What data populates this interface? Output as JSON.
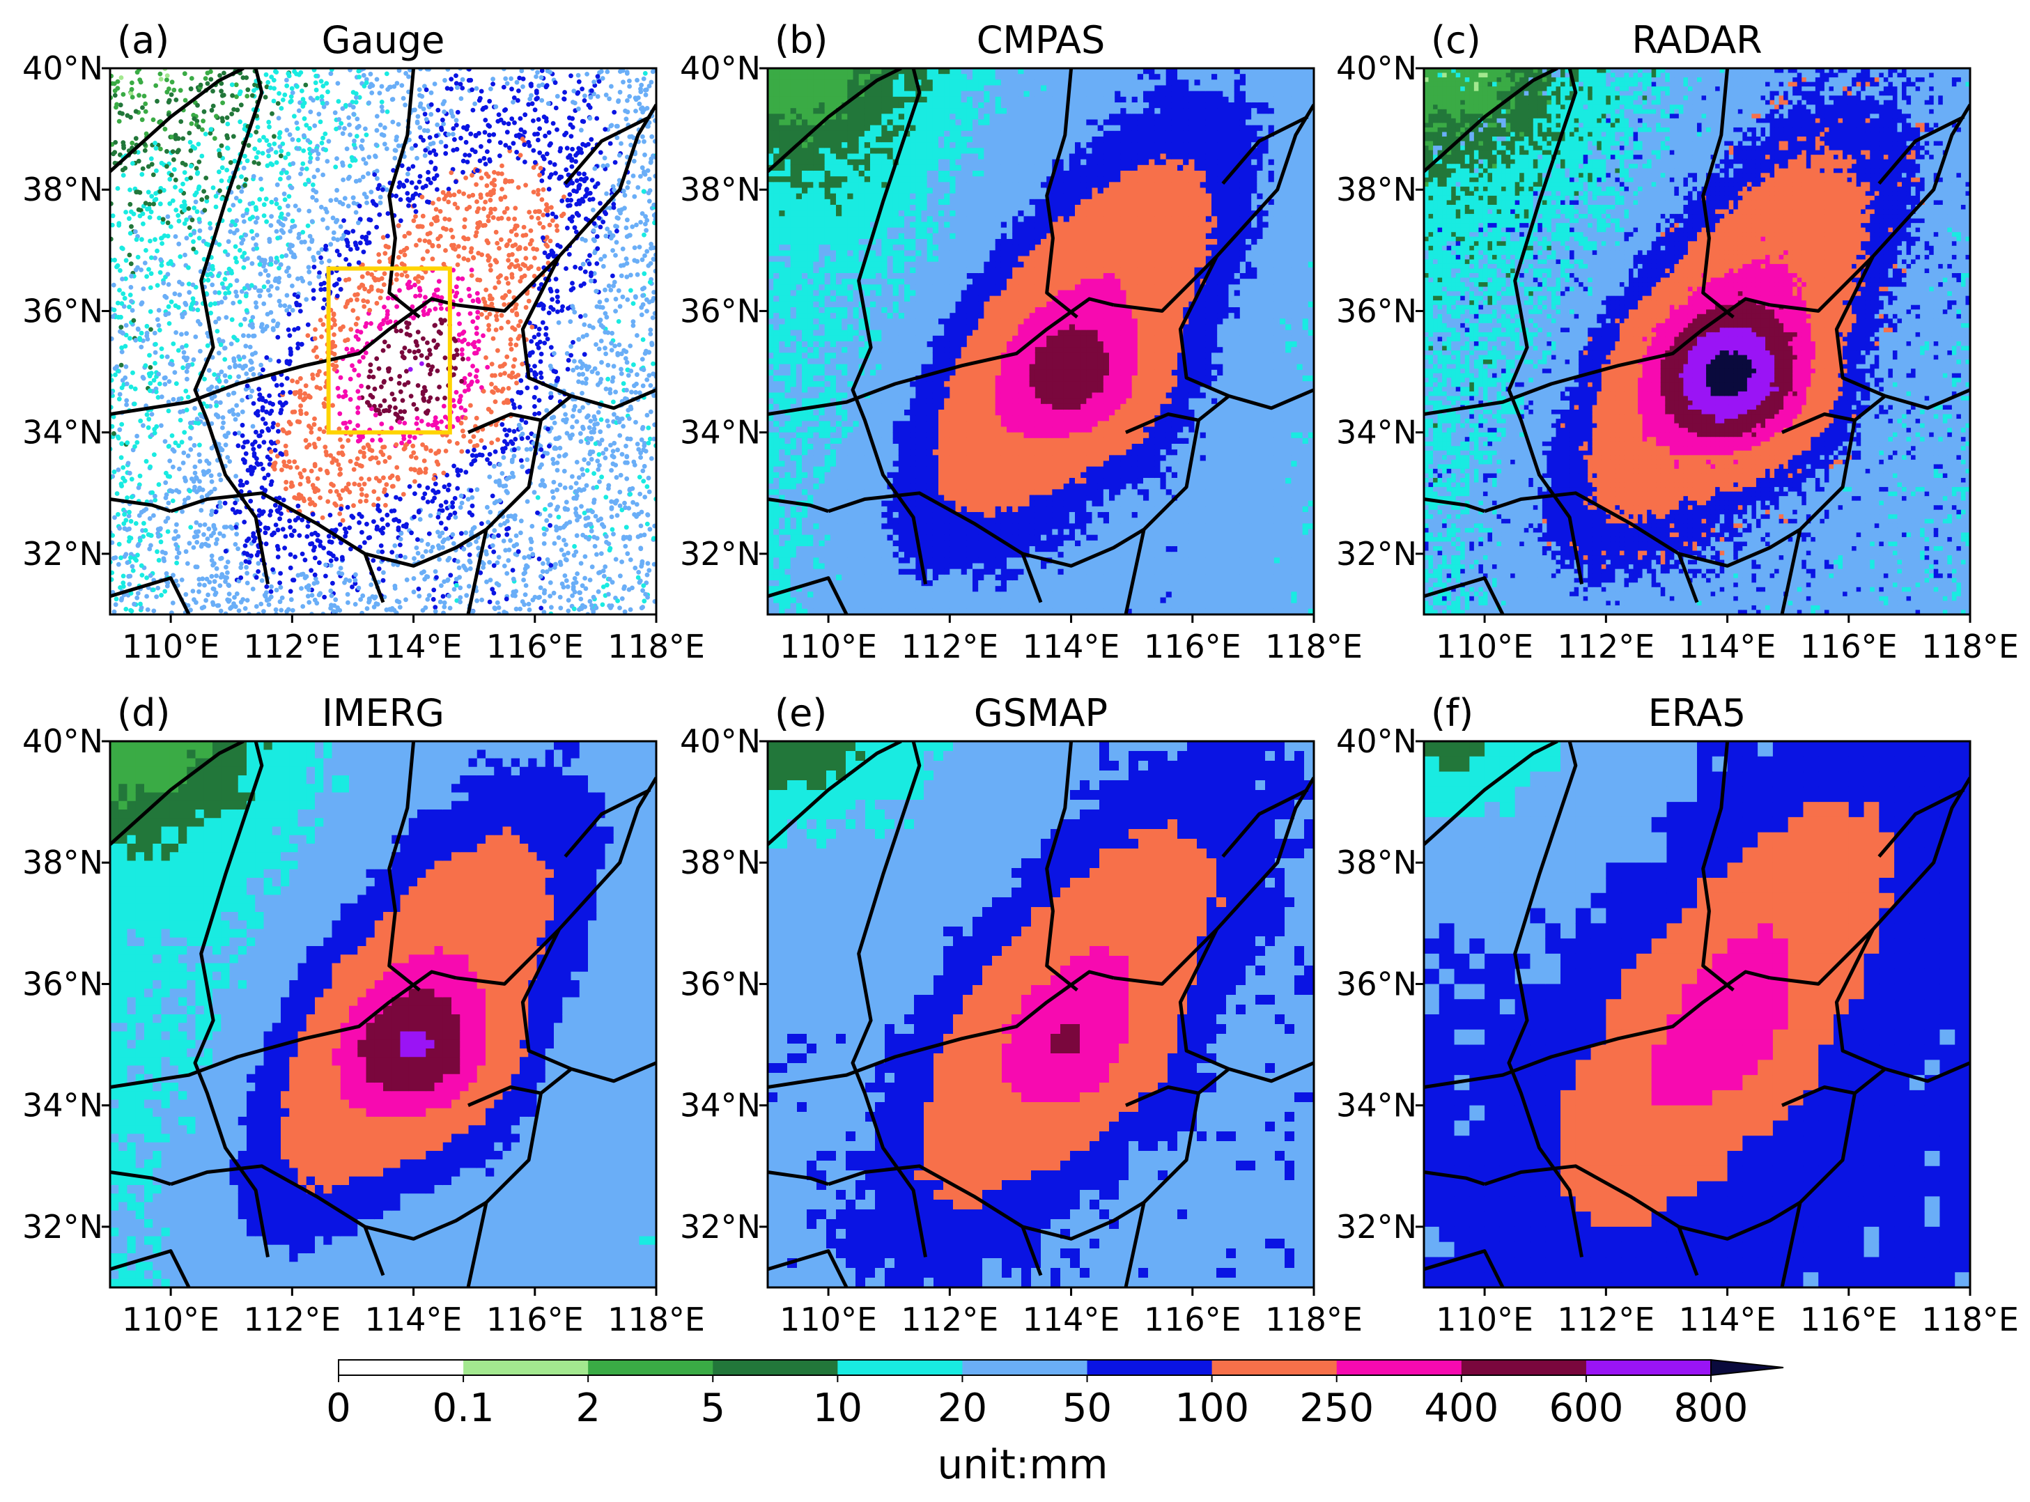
{
  "chart_data": {
    "type": "heatmap",
    "figure_title": "",
    "unit_label": "unit:mm",
    "x_ticks": [
      "110°E",
      "112°E",
      "114°E",
      "116°E",
      "118°E"
    ],
    "y_ticks": [
      "40°N",
      "38°N",
      "36°N",
      "34°N",
      "32°N"
    ],
    "x_tick_values": [
      110,
      112,
      114,
      116,
      118
    ],
    "y_tick_values": [
      40,
      38,
      36,
      34,
      32
    ],
    "xlim": [
      109,
      118
    ],
    "ylim": [
      31,
      40
    ],
    "colorbar": {
      "bounds": [
        "0",
        "0.1",
        "2",
        "5",
        "10",
        "20",
        "50",
        "100",
        "250",
        "400",
        "600",
        "800"
      ],
      "colors": [
        "#ffffff",
        "#a3e88f",
        "#3aab45",
        "#22773a",
        "#19ebe1",
        "#6aaef7",
        "#0a14e3",
        "#f7704a",
        "#f70ab0",
        "#7a073d",
        "#9a14f5",
        "#0a0a3d"
      ],
      "extend": "max"
    },
    "panels": [
      {
        "label": "(a)",
        "title": "Gauge",
        "pattern": "gauge",
        "highlight_box": {
          "lon": [
            112.6,
            114.6
          ],
          "lat": [
            34.0,
            36.7
          ],
          "color": "#ffd400"
        }
      },
      {
        "label": "(b)",
        "title": "CMPAS",
        "pattern": "cmpas"
      },
      {
        "label": "(c)",
        "title": "RADAR",
        "pattern": "radar"
      },
      {
        "label": "(d)",
        "title": "IMERG",
        "pattern": "imerg"
      },
      {
        "label": "(e)",
        "title": "GSMAP",
        "pattern": "gsmap"
      },
      {
        "label": "(f)",
        "title": "ERA5",
        "pattern": "era5"
      }
    ]
  }
}
